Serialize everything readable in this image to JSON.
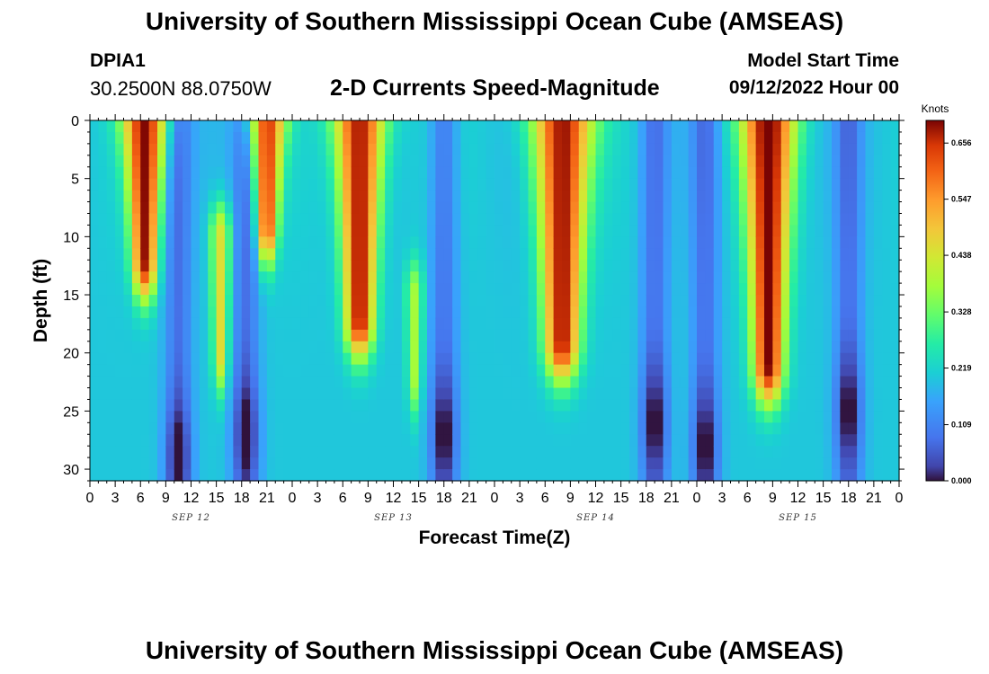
{
  "header": {
    "title": "University of Southern Mississippi Ocean Cube (AMSEAS)",
    "station_id": "DPIA1",
    "station_coords": "30.2500N  88.0750W",
    "plot_title": "2-D Currents Speed-Magnitude",
    "model_start_label": "Model Start Time",
    "model_start_value": "09/12/2022 Hour 00"
  },
  "footer": {
    "title": "University of Southern Mississippi Ocean Cube (AMSEAS)"
  },
  "chart_data": {
    "type": "heatmap",
    "title": "2-D Currents Speed-Magnitude",
    "xlabel": "Forecast Time(Z)",
    "ylabel": "Depth (ft)",
    "x_range_hours": [
      0,
      96
    ],
    "x_tick_step_hours": 3,
    "x_tick_labels": [
      "0",
      "3",
      "6",
      "9",
      "12",
      "15",
      "18",
      "21",
      "0",
      "3",
      "6",
      "9",
      "12",
      "15",
      "18",
      "21",
      "0",
      "3",
      "6",
      "9",
      "12",
      "15",
      "18",
      "21",
      "0",
      "3",
      "6",
      "9",
      "12",
      "15",
      "18",
      "21",
      "0"
    ],
    "date_labels": [
      {
        "label": "SEP 12",
        "hour": 12
      },
      {
        "label": "SEP 13",
        "hour": 36
      },
      {
        "label": "SEP 14",
        "hour": 60
      },
      {
        "label": "SEP 15",
        "hour": 84
      }
    ],
    "ylim": [
      0,
      31
    ],
    "y_ticks": [
      0,
      5,
      10,
      15,
      20,
      25,
      30
    ],
    "colorbar": {
      "units": "Knots",
      "min": 0.0,
      "max": 0.7,
      "ticks": [
        0.0,
        0.109,
        0.219,
        0.328,
        0.438,
        0.547,
        0.656
      ],
      "tick_labels": [
        "0.000",
        "0.109",
        "0.219",
        "0.328",
        "0.438",
        "0.547",
        "0.656"
      ]
    },
    "speed_cores": [
      {
        "hour": 6.5,
        "depth_max": 12,
        "peak": 0.68,
        "width_h": 2.6
      },
      {
        "hour": 15.5,
        "depth_max": 20,
        "peak": 0.46,
        "width_h": 1.2,
        "depth_min": 10
      },
      {
        "hour": 21.0,
        "depth_max": 9,
        "peak": 0.64,
        "width_h": 2.2
      },
      {
        "hour": 32.0,
        "depth_max": 17,
        "peak": 0.7,
        "width_h": 3.0
      },
      {
        "hour": 38.5,
        "depth_max": 22,
        "peak": 0.38,
        "width_h": 1.0,
        "depth_min": 15
      },
      {
        "hour": 56.0,
        "depth_max": 19,
        "peak": 0.69,
        "width_h": 3.6
      },
      {
        "hour": 80.5,
        "depth_max": 21,
        "peak": 0.7,
        "width_h": 3.2
      }
    ],
    "slack_minima": [
      {
        "hour": 10.5,
        "peak_depth": 29
      },
      {
        "hour": 18.5,
        "peak_depth": 27
      },
      {
        "hour": 42.0,
        "peak_depth": 27
      },
      {
        "hour": 67.0,
        "peak_depth": 26
      },
      {
        "hour": 73.0,
        "peak_depth": 28
      },
      {
        "hour": 90.0,
        "peak_depth": 25
      }
    ]
  }
}
